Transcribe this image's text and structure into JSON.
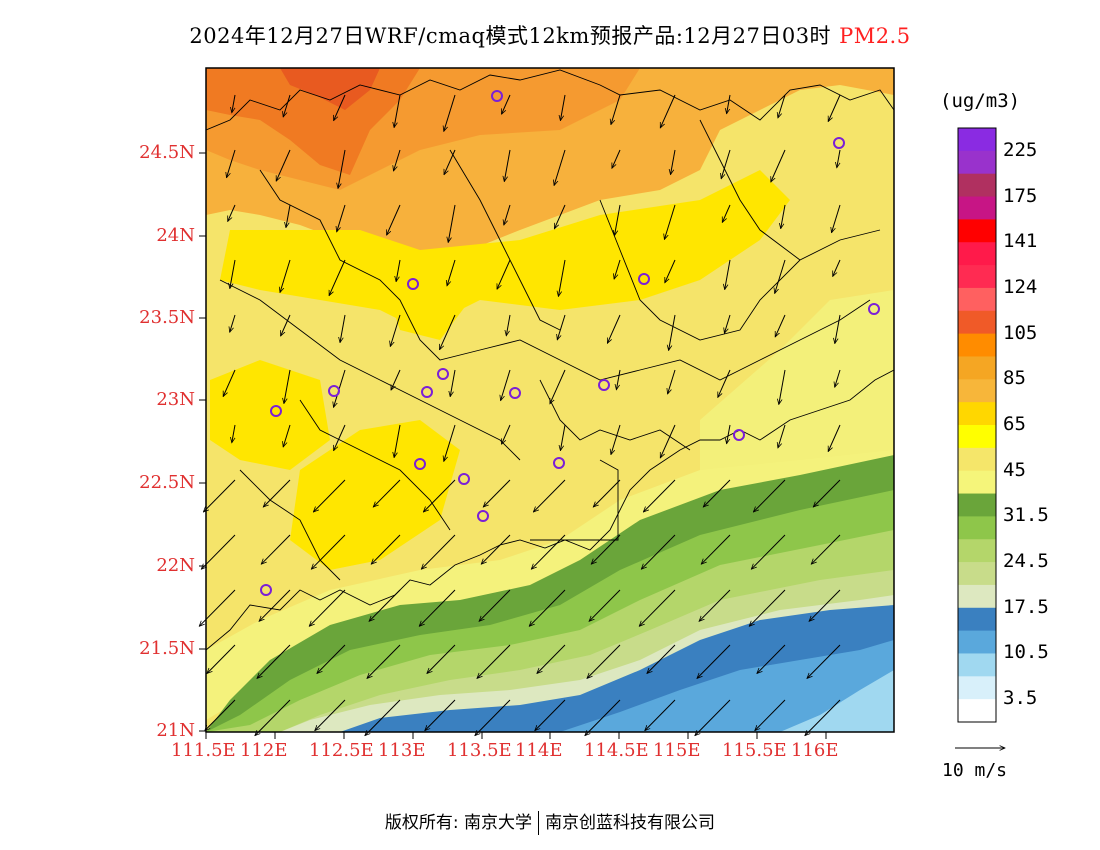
{
  "title": {
    "text": "2024年12月27日WRF/cmaq模式12km预报产品:12月27日03时",
    "pollutant": "PM2.5"
  },
  "map": {
    "lat_labels": [
      "24.5N",
      "24N",
      "23.5N",
      "23N",
      "22.5N",
      "22N",
      "21.5N",
      "21N"
    ],
    "lon_labels": [
      "111.5E",
      "112E",
      "112.5E",
      "113E",
      "113.5E",
      "114E",
      "114.5E",
      "115E",
      "115.5E",
      "116E"
    ]
  },
  "colorbar": {
    "unit": "(ug/m3)",
    "colors": [
      "#8a2be2",
      "#9932cc",
      "#b03060",
      "#c71585",
      "#ff0000",
      "#ff1a4a",
      "#ff2b52",
      "#ff6060",
      "#f05a28",
      "#ff8c00",
      "#f5a623",
      "#f7b63a",
      "#ffd700",
      "#ffff00",
      "#f5e66a",
      "#f5f57a",
      "#6aa53a",
      "#8ec64a",
      "#b4d66a",
      "#c8dc8a",
      "#dde8c0",
      "#3a80c0",
      "#5aa8dc",
      "#a0d8f0",
      "#d8f0fa",
      "#ffffff"
    ],
    "labels": [
      "225",
      "175",
      "141",
      "124",
      "105",
      "85",
      "65",
      "45",
      "31.5",
      "24.5",
      "17.5",
      "10.5",
      "3.5"
    ]
  },
  "wind_reference": {
    "label": "10 m/s"
  },
  "credits": {
    "left": "版权所有: 南京大学",
    "right": "南京创蓝科技有限公司"
  }
}
